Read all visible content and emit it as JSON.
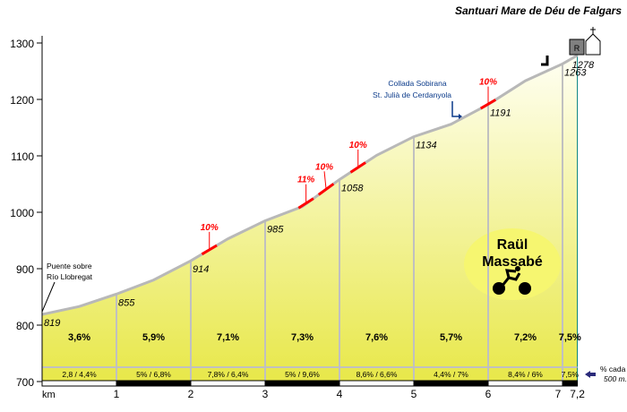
{
  "chart_data": {
    "type": "area",
    "title": "Santuari Mare de Déu de Falgars",
    "xlabel": "km",
    "ylabel": "",
    "xlim": [
      0,
      7.2
    ],
    "ylim": [
      700,
      1300
    ],
    "y_ticks": [
      700,
      800,
      900,
      1000,
      1100,
      1200,
      1300
    ],
    "x_ticks": [
      {
        "v": 1,
        "label": "1"
      },
      {
        "v": 2,
        "label": "2"
      },
      {
        "v": 3,
        "label": "3"
      },
      {
        "v": 4,
        "label": "4"
      },
      {
        "v": 5,
        "label": "5"
      },
      {
        "v": 6,
        "label": "6"
      },
      {
        "v": 7,
        "label": "7"
      },
      {
        "v": 7.2,
        "label": "7,2"
      }
    ],
    "profile": {
      "x": [
        0,
        0.5,
        1,
        1.5,
        2,
        2.5,
        3,
        3.5,
        4,
        4.5,
        5,
        5.5,
        6,
        6.5,
        7,
        7.2
      ],
      "y": [
        819,
        833,
        855,
        880,
        914,
        953,
        985,
        1010,
        1058,
        1101,
        1134,
        1156,
        1191,
        1233,
        1263,
        1278
      ]
    },
    "km_points": [
      {
        "km": 0,
        "label": "819"
      },
      {
        "km": 1,
        "label": "855"
      },
      {
        "km": 2,
        "label": "914"
      },
      {
        "km": 3,
        "label": "985"
      },
      {
        "km": 4,
        "label": "1058"
      },
      {
        "km": 5,
        "label": "1134"
      },
      {
        "km": 6,
        "label": "1191"
      },
      {
        "km": 7,
        "label": "1263"
      },
      {
        "km": 7.2,
        "label": "1278"
      }
    ],
    "km_gradients": [
      "3,6%",
      "5,9%",
      "7,1%",
      "7,3%",
      "7,6%",
      "5,7%",
      "7,2%",
      "7,5%"
    ],
    "half_km_gradients": [
      "2,8  /  4,4%",
      "5%  /  6,8%",
      "7,8%  /  6,4%",
      "5%  /  9,6%",
      "8,6%  /  6,6%",
      "4,4%  /  7%",
      "8,4%  /  6%",
      "7,5%"
    ],
    "steep_sections": [
      {
        "km": 2.25,
        "label": "10%"
      },
      {
        "km": 3.55,
        "label": "11%"
      },
      {
        "km": 3.82,
        "label": "10%"
      },
      {
        "km": 4.25,
        "label": "10%"
      },
      {
        "km": 6.0,
        "label": "10%"
      }
    ],
    "annotations": {
      "start": "Puente sobre",
      "start2": "Río Llobregat",
      "pass1": "Collada Sobirana",
      "pass2": "St. Julià de Cerdanyola",
      "legend1": "% cada",
      "legend2": "500 m."
    },
    "author": {
      "line1": "Raül",
      "line2": "Massabé"
    },
    "colors": {
      "fill_top": "#fffff4",
      "fill_bottom": "#e8e84c",
      "profile": "#b8b8b8",
      "steep": "#ff0000",
      "dist": "#0a3a8a",
      "teal": "#008080"
    }
  }
}
